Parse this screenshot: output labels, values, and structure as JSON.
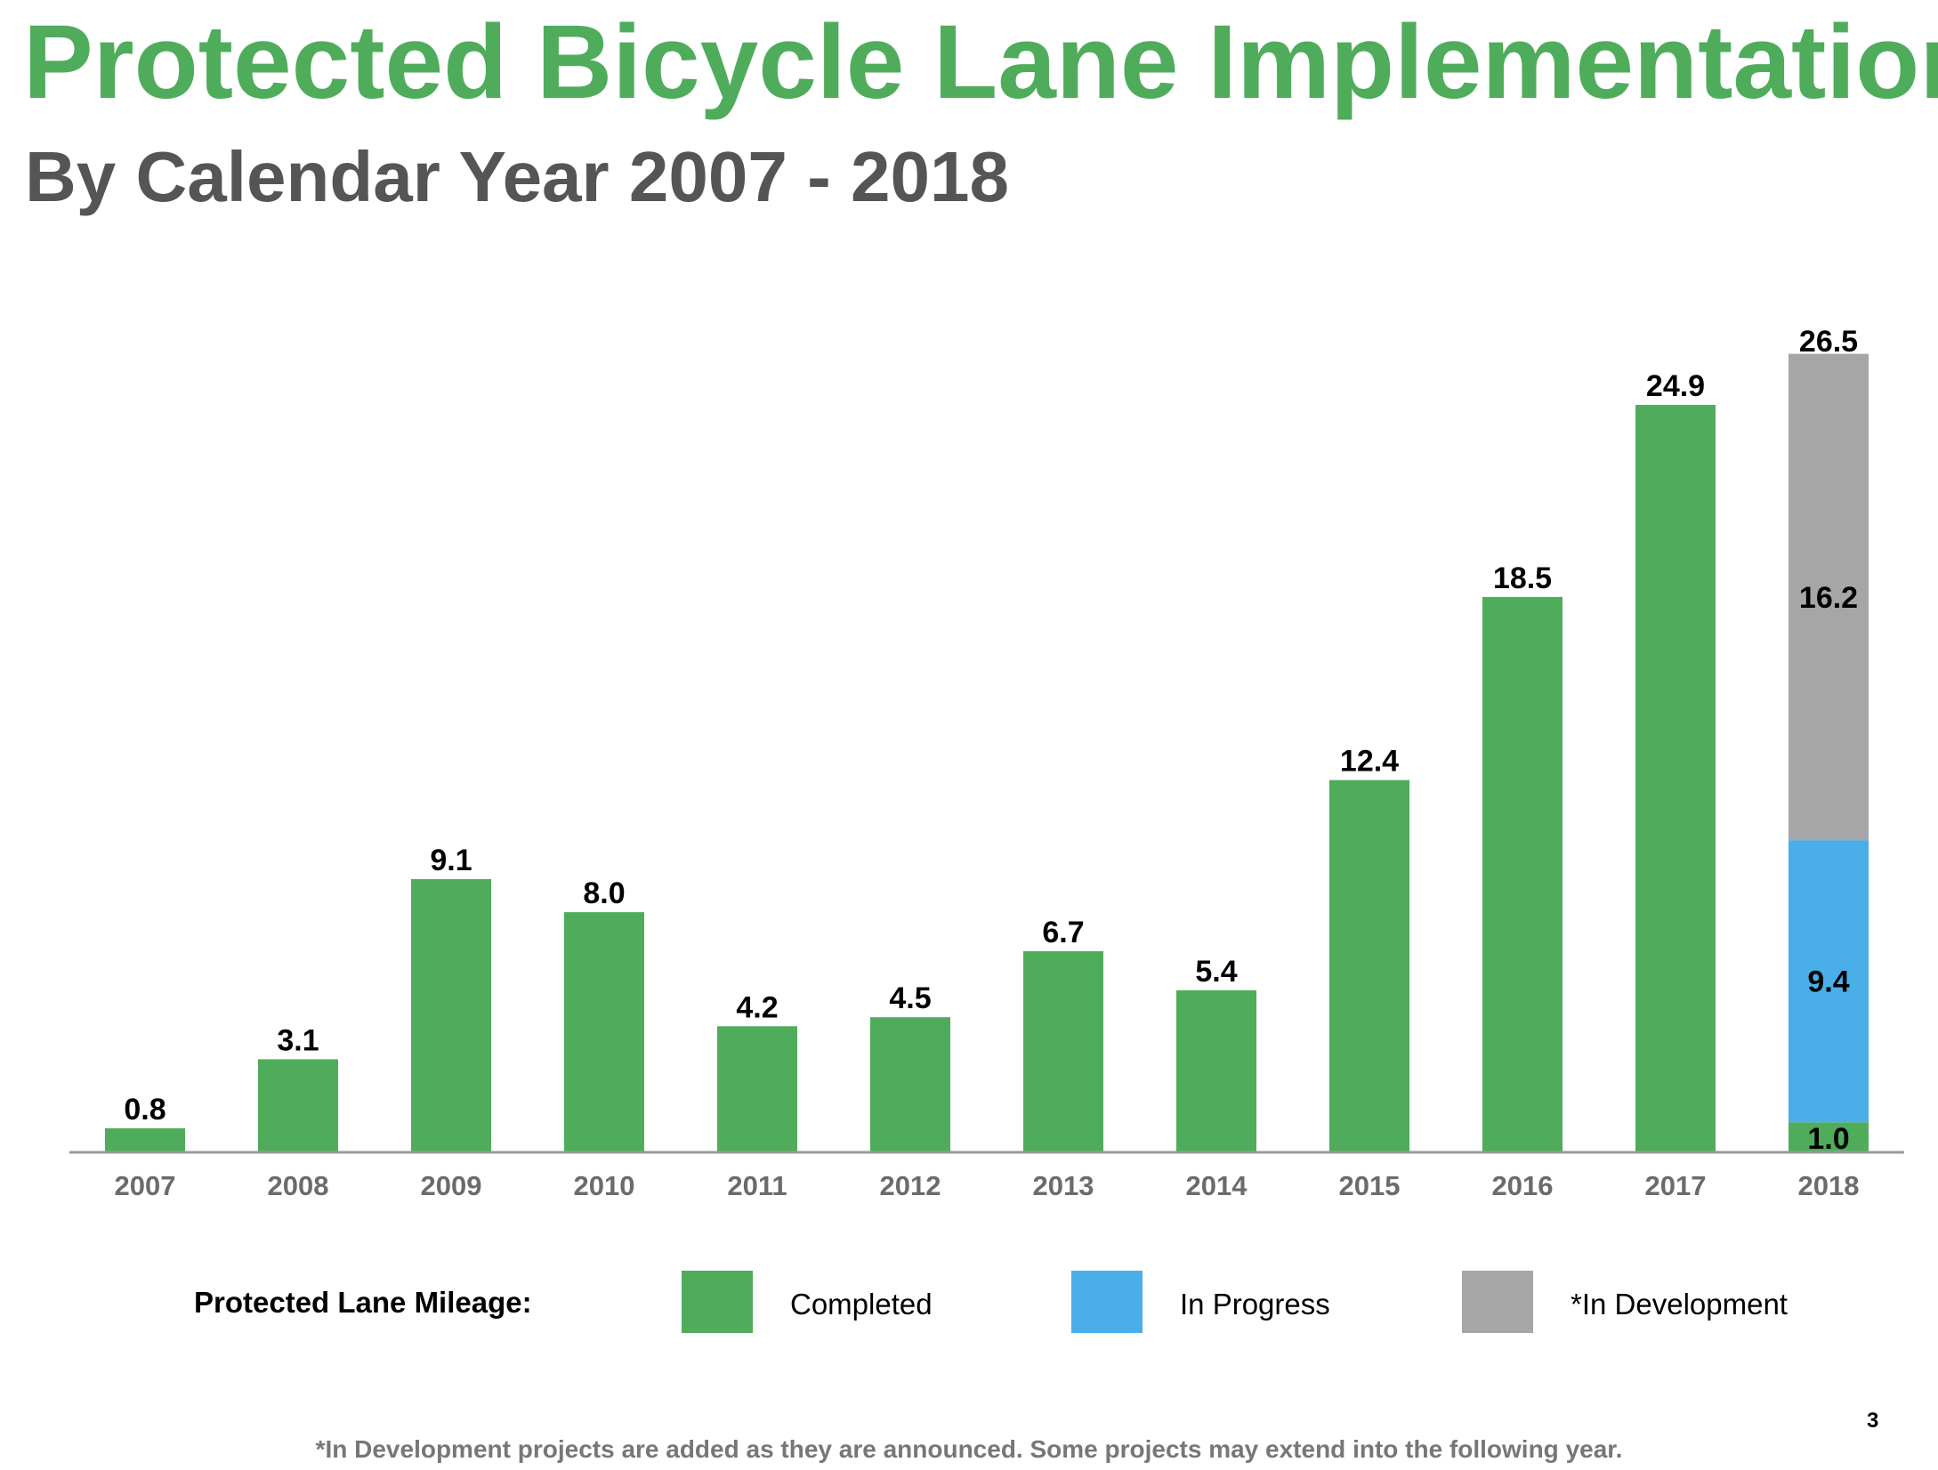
{
  "title": "Protected Bicycle Lane Implementation",
  "subtitle": "By Calendar Year 2007 - 2018",
  "legend": {
    "heading": "Protected Lane Mileage:",
    "items": [
      {
        "label": "Completed",
        "color": "#4fac5b"
      },
      {
        "label": "In Progress",
        "color": "#4aaee8"
      },
      {
        "label": "*In Development",
        "color": "#a6a6a6"
      }
    ]
  },
  "footnote": "*In Development projects are added as they are announced. Some projects may extend into the following year.",
  "page_number": "3",
  "chart_data": {
    "type": "bar",
    "stacked": true,
    "categories": [
      "2007",
      "2008",
      "2009",
      "2010",
      "2011",
      "2012",
      "2013",
      "2014",
      "2015",
      "2016",
      "2017",
      "2018"
    ],
    "series": [
      {
        "name": "Completed",
        "color": "#4fac5b",
        "values": [
          0.8,
          3.1,
          9.1,
          8.0,
          4.2,
          4.5,
          6.7,
          5.4,
          12.4,
          18.5,
          24.9,
          1.0
        ]
      },
      {
        "name": "In Progress",
        "color": "#4aaee8",
        "values": [
          0,
          0,
          0,
          0,
          0,
          0,
          0,
          0,
          0,
          0,
          0,
          9.4
        ]
      },
      {
        "name": "*In Development",
        "color": "#a6a6a6",
        "values": [
          0,
          0,
          0,
          0,
          0,
          0,
          0,
          0,
          0,
          0,
          0,
          16.2
        ]
      }
    ],
    "segment_labels": [
      "0.8",
      "3.1",
      "9.1",
      "8.0",
      "4.2",
      "4.5",
      "6.7",
      "5.4",
      "12.4",
      "18.5",
      "24.9",
      "1.0",
      "9.4",
      "16.2"
    ],
    "totals": [
      null,
      null,
      null,
      null,
      null,
      null,
      null,
      null,
      null,
      null,
      null,
      26.5
    ],
    "total_labels": [
      "26.5"
    ],
    "ylim": [
      0,
      26.5
    ],
    "grid": false
  }
}
